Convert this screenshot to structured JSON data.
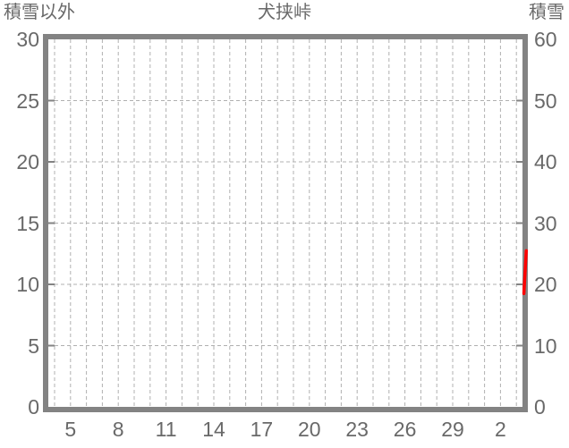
{
  "page": {
    "background": "#ffffff"
  },
  "chart_data": {
    "type": "line",
    "title": "犬挟峠",
    "left_axis": {
      "label": "積雪以外",
      "range": [
        0,
        30
      ],
      "ticks": [
        0,
        5,
        10,
        15,
        20,
        25,
        30
      ]
    },
    "right_axis": {
      "label": "積雪",
      "range": [
        0,
        60
      ],
      "ticks": [
        0,
        10,
        20,
        30,
        40,
        50,
        60
      ]
    },
    "x_axis": {
      "tick_labels": [
        "5",
        "8",
        "11",
        "14",
        "17",
        "20",
        "23",
        "26",
        "29",
        "2"
      ],
      "gridlines": 30,
      "labels_every_n_gridlines": 3,
      "first_label_gridline_index": 1
    },
    "grid_style": "dashed",
    "legend": "none",
    "series": [
      {
        "name": "積雪",
        "axis": "right",
        "color": "#ff0000",
        "points": [
          {
            "x_frac": 1.003,
            "value": 18.5
          },
          {
            "x_frac": 1.008,
            "value": 25.5
          }
        ]
      }
    ],
    "colors": {
      "frame": "#838383",
      "grid": "#b0b0b0",
      "text": "#696969",
      "series": "#ff0000"
    }
  }
}
